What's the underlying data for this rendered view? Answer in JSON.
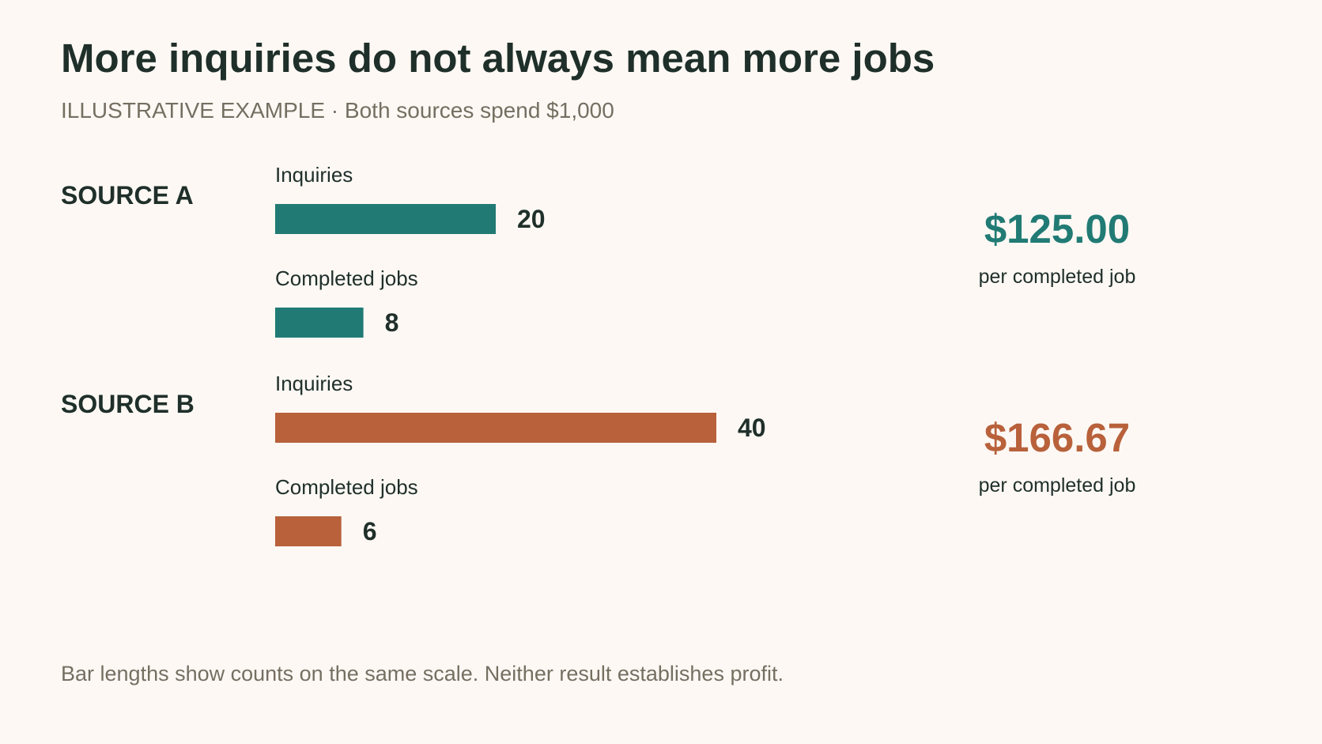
{
  "header": {
    "title": "More inquiries do not always mean more jobs",
    "subtitle": "ILLUSTRATIVE EXAMPLE · Both sources spend $1,000"
  },
  "footnote": "Bar lengths show counts on the same scale. Neither result establishes profit.",
  "chart_data": {
    "type": "bar",
    "orientation": "horizontal",
    "title": "More inquiries do not always mean more jobs",
    "subtitle": "ILLUSTRATIVE EXAMPLE · Both sources spend $1,000",
    "metrics": [
      "Inquiries",
      "Completed jobs"
    ],
    "groups": [
      {
        "name": "SOURCE A",
        "color": "#217b74",
        "values": [
          20,
          8
        ],
        "cost_per_job": "$125.00",
        "cost_caption": "per completed job"
      },
      {
        "name": "SOURCE B",
        "color": "#b8613b",
        "values": [
          40,
          6
        ],
        "cost_per_job": "$166.67",
        "cost_caption": "per completed job"
      }
    ],
    "grid": false,
    "legend": "none"
  }
}
